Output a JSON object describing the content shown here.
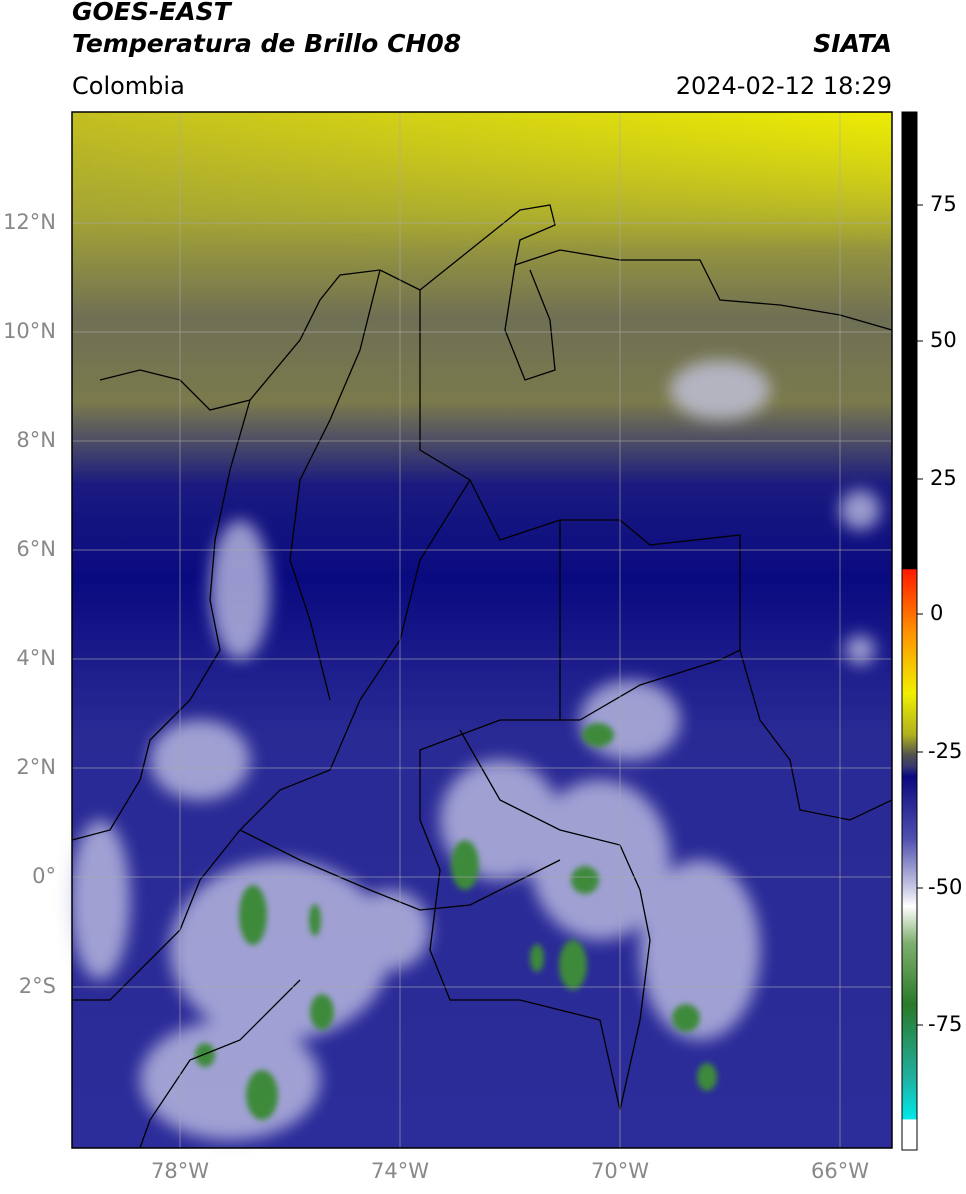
{
  "header": {
    "title": "GOES-EAST",
    "subtitle": "Temperatura de Brillo CH08",
    "region": "Colombia",
    "source": "SIATA",
    "datetime": "2024-02-12 18:29"
  },
  "map": {
    "lat_labels": [
      "12°N",
      "10°N",
      "8°N",
      "6°N",
      "4°N",
      "2°N",
      "0°",
      "2°S"
    ],
    "lon_labels": [
      "78°W",
      "74°W",
      "70°W",
      "66°W"
    ]
  },
  "colorbar": {
    "labels": [
      75,
      50,
      25,
      0,
      -25,
      -50,
      -75
    ]
  }
}
